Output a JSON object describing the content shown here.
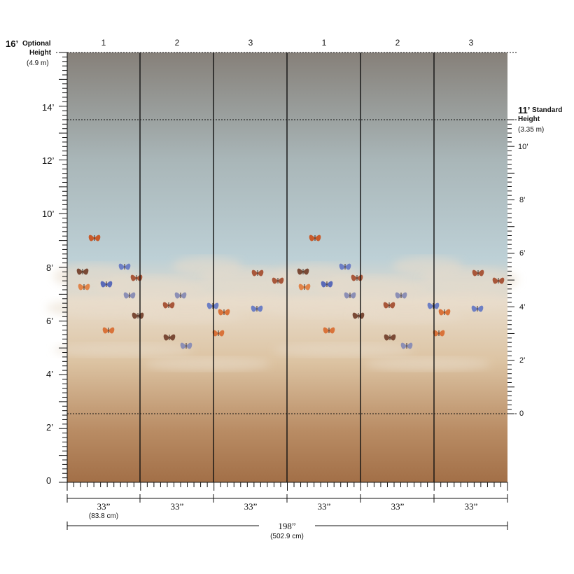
{
  "colors": {
    "sky_top": "#868079",
    "sky_mid": "#a9b6b8",
    "sky_blue": "#bdd0d6",
    "cloud": "#e8dccb",
    "sand": "#dcc3a2",
    "earth": "#b98c64",
    "earth_bottom": "#a26f47",
    "line": "#111111"
  },
  "panels": [
    "1",
    "2",
    "3",
    "1",
    "2",
    "3"
  ],
  "optional_height": {
    "value": "16’",
    "label": "Optional",
    "label2": "Height",
    "metric": "(4.9 m)"
  },
  "standard_height": {
    "value": "11’",
    "label": "Standard",
    "label2": "Height",
    "metric": "(3.35 m)"
  },
  "left_axis": [
    "0",
    "2’",
    "4’",
    "6’",
    "8’",
    "10’",
    "12’",
    "14’"
  ],
  "right_axis": [
    "0",
    "2’",
    "4’",
    "6’",
    "8’",
    "10’"
  ],
  "panel_width": {
    "label": "33”",
    "metric": "(83.8 cm)"
  },
  "total_width": {
    "label": "198”",
    "metric": "(502.9 cm)"
  },
  "butterfly_colors": [
    "#c85a2a",
    "#6d7fc4",
    "#7a4a36",
    "#d9733a",
    "#8c8fb5",
    "#a8573a",
    "#5a6ab8",
    "#e0844a"
  ]
}
